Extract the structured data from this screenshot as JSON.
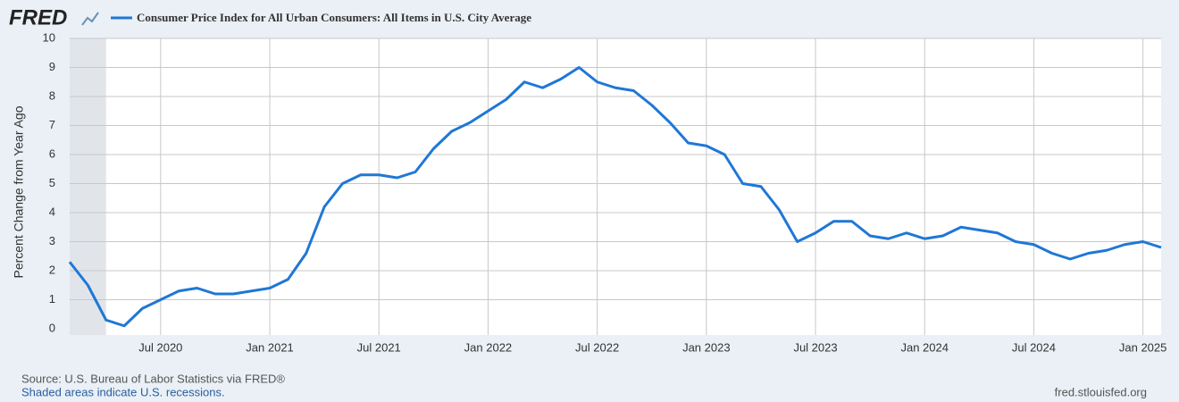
{
  "logo": "FRED",
  "chart_data": {
    "type": "line",
    "title": "Consumer Price Index for All Urban Consumers: All Items in U.S. City Average",
    "y_label": "Percent Change from Year Ago",
    "source": "Source: U.S. Bureau of Labor Statistics via FRED®",
    "note": "Shaded areas indicate U.S. recessions.",
    "site": "fred.stlouisfed.org",
    "x": [
      "2020-02",
      "2020-03",
      "2020-04",
      "2020-05",
      "2020-06",
      "2020-07",
      "2020-08",
      "2020-09",
      "2020-10",
      "2020-11",
      "2020-12",
      "2021-01",
      "2021-02",
      "2021-03",
      "2021-04",
      "2021-05",
      "2021-06",
      "2021-07",
      "2021-08",
      "2021-09",
      "2021-10",
      "2021-11",
      "2021-12",
      "2022-01",
      "2022-02",
      "2022-03",
      "2022-04",
      "2022-05",
      "2022-06",
      "2022-07",
      "2022-08",
      "2022-09",
      "2022-10",
      "2022-11",
      "2022-12",
      "2023-01",
      "2023-02",
      "2023-03",
      "2023-04",
      "2023-05",
      "2023-06",
      "2023-07",
      "2023-08",
      "2023-09",
      "2023-10",
      "2023-11",
      "2023-12",
      "2024-01",
      "2024-02",
      "2024-03",
      "2024-04",
      "2024-05",
      "2024-06",
      "2024-07",
      "2024-08",
      "2024-09",
      "2024-10",
      "2024-11",
      "2024-12",
      "2025-01",
      "2025-02"
    ],
    "series": [
      {
        "name": "Consumer Price Index for All Urban Consumers: All Items in U.S. City Average",
        "color": "#1f77d6",
        "values": [
          2.3,
          1.5,
          0.3,
          0.1,
          0.7,
          1.0,
          1.3,
          1.4,
          1.2,
          1.2,
          1.3,
          1.4,
          1.7,
          2.6,
          4.2,
          5.0,
          5.3,
          5.3,
          5.2,
          5.4,
          6.2,
          6.8,
          7.1,
          7.5,
          7.9,
          8.5,
          8.3,
          8.6,
          9.0,
          8.5,
          8.3,
          8.2,
          7.7,
          7.1,
          6.4,
          6.3,
          6.0,
          5.0,
          4.9,
          4.1,
          3.0,
          3.3,
          3.7,
          3.7,
          3.2,
          3.1,
          3.3,
          3.1,
          3.2,
          3.5,
          3.4,
          3.3,
          3.0,
          2.9,
          2.6,
          2.4,
          2.6,
          2.7,
          2.9,
          3.0,
          2.8
        ]
      }
    ],
    "recessions": [
      {
        "start": "2020-02",
        "end": "2020-04"
      }
    ],
    "ylim": [
      0,
      10
    ],
    "yticks": [
      0,
      1,
      2,
      3,
      4,
      5,
      6,
      7,
      8,
      9,
      10
    ],
    "xticks": [
      {
        "value": "2020-07",
        "label": "Jul 2020"
      },
      {
        "value": "2021-01",
        "label": "Jan 2021"
      },
      {
        "value": "2021-07",
        "label": "Jul 2021"
      },
      {
        "value": "2022-01",
        "label": "Jan 2022"
      },
      {
        "value": "2022-07",
        "label": "Jul 2022"
      },
      {
        "value": "2023-01",
        "label": "Jan 2023"
      },
      {
        "value": "2023-07",
        "label": "Jul 2023"
      },
      {
        "value": "2024-01",
        "label": "Jan 2024"
      },
      {
        "value": "2024-07",
        "label": "Jul 2024"
      },
      {
        "value": "2025-01",
        "label": "Jan 2025"
      }
    ],
    "grid": true
  }
}
